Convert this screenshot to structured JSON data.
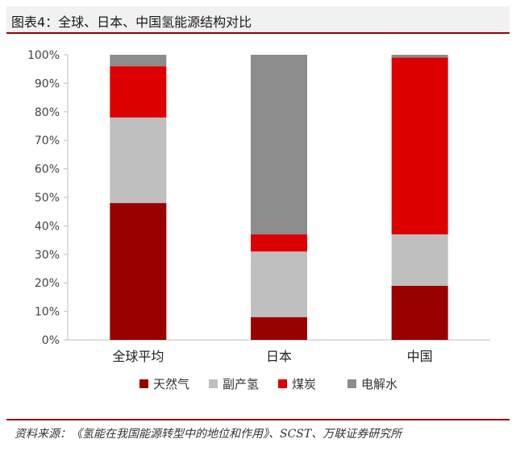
{
  "title": "图表4：全球、日本、中国氢能源结构对比",
  "source": "资料来源：《氢能在我国能源转型中的地位和作用》、SCST、万联证券研究所",
  "colors": {
    "natural_gas": "#990000",
    "byproduct_h2": "#bfbfbf",
    "coal": "#dd0000",
    "electrolysis": "#8c8c8c"
  },
  "chart_data": {
    "type": "bar",
    "stacked": true,
    "categories": [
      "全球平均",
      "日本",
      "中国"
    ],
    "series": [
      {
        "name": "天然气",
        "color": "#990000",
        "values": [
          48,
          8,
          19
        ]
      },
      {
        "name": "副产氢",
        "color": "#bfbfbf",
        "values": [
          30,
          23,
          18
        ]
      },
      {
        "name": "煤炭",
        "color": "#dd0000",
        "values": [
          18,
          6,
          62
        ]
      },
      {
        "name": "电解水",
        "color": "#8c8c8c",
        "values": [
          4,
          63,
          1
        ]
      }
    ],
    "yticks": [
      "0%",
      "10%",
      "20%",
      "30%",
      "40%",
      "50%",
      "60%",
      "70%",
      "80%",
      "90%",
      "100%"
    ],
    "ylim": [
      0,
      100
    ],
    "grid": false,
    "legend": "bottom"
  }
}
